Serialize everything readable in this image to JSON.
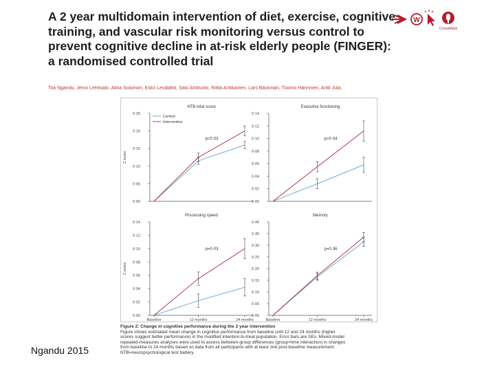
{
  "paper": {
    "title_lines": [
      "A 2 year multidomain intervention of diet, exercise, cognitive",
      "training, and vascular risk monitoring versus control to",
      "prevent cognitive decline in at-risk elderly people (FINGER):",
      "a randomised controlled trial"
    ],
    "authors": "Tiia Ngandu, Jenni Lehtisalo, Alina Solomon, Esko Levälahti, Satu Ahtiluoto, Riitta Antikainen, Lars Bäckman, Tuomo Hänninen, Antti Jula,",
    "logos": {
      "color": "#b01e2e",
      "badge_text": "CrossMark"
    },
    "citation": "Ngandu 2015"
  },
  "figure": {
    "caption_title": "Figure 2: Change in cognitive performance during the 2 year intervention",
    "caption_lines": [
      "Figure shows estimated mean change in cognitive performance from baseline until 12 and 24 months (higher",
      "scores suggest better performance) in the modified intention-to-treat population. Error bars are SEs. Mixed-model",
      "repeated-measures analyses were used to assess between-group differences (group×time interaction) in changes",
      "from baseline to 24 months based on data from all participants with at least one post-baseline measurement.",
      "NTB=neuropsychological test battery."
    ],
    "legend": {
      "control": "Control",
      "intervention": "Intervention"
    },
    "colors": {
      "control": "#5aa0d0",
      "intervention": "#a8283a",
      "axis": "#555555"
    }
  },
  "chart_data": [
    {
      "type": "line",
      "title": "NTB total score",
      "ylabel": "Z score",
      "xlabel": "",
      "categories": [
        "Baseline",
        "12 months",
        "24 months"
      ],
      "x_ticks_shown": false,
      "ylim": [
        0,
        0.25
      ],
      "yticks": [
        "0·25",
        "0·20",
        "0·15",
        "0·10",
        "0·05",
        "0·00"
      ],
      "yvals": [
        0.25,
        0.2,
        0.15,
        0.1,
        0.05,
        0.0
      ],
      "p_label": "p=0·03",
      "legend": "top-left",
      "series": [
        {
          "name": "Control",
          "values": [
            0,
            0.115,
            0.16
          ],
          "err": [
            0,
            0.01,
            0.01
          ]
        },
        {
          "name": "Intervention",
          "values": [
            0,
            0.125,
            0.2
          ],
          "err": [
            0,
            0.012,
            0.014
          ]
        }
      ]
    },
    {
      "type": "line",
      "title": "Executive functioning",
      "ylabel": "",
      "xlabel": "",
      "categories": [
        "Baseline",
        "12 months",
        "24 months"
      ],
      "x_ticks_shown": false,
      "ylim": [
        0,
        0.14
      ],
      "yticks": [
        "0·14",
        "0·12",
        "0·10",
        "0·08",
        "0·06",
        "0·04",
        "0·02",
        "0·00"
      ],
      "yvals": [
        0.14,
        0.12,
        0.1,
        0.08,
        0.06,
        0.04,
        0.02,
        0.0
      ],
      "p_label": "p=0·04",
      "series": [
        {
          "name": "Control",
          "values": [
            0,
            0.028,
            0.058
          ],
          "err": [
            0,
            0.008,
            0.012
          ]
        },
        {
          "name": "Intervention",
          "values": [
            0,
            0.055,
            0.112
          ],
          "err": [
            0,
            0.008,
            0.016
          ]
        }
      ]
    },
    {
      "type": "line",
      "title": "Processing speed",
      "ylabel": "Z score",
      "xlabel": "",
      "categories": [
        "Baseline",
        "12 months",
        "24 months"
      ],
      "x_ticks_shown": true,
      "ylim": [
        0,
        0.14
      ],
      "yticks": [
        "0·14",
        "0·12",
        "0·10",
        "0·08",
        "0·06",
        "0·04",
        "0·02",
        "0·00"
      ],
      "yvals": [
        0.14,
        0.12,
        0.1,
        0.08,
        0.06,
        0.04,
        0.02,
        0.0
      ],
      "p_label": "p=0·03",
      "series": [
        {
          "name": "Control",
          "values": [
            0,
            0.022,
            0.042
          ],
          "err": [
            0,
            0.01,
            0.013
          ]
        },
        {
          "name": "Intervention",
          "values": [
            0,
            0.055,
            0.1
          ],
          "err": [
            0,
            0.01,
            0.015
          ]
        }
      ]
    },
    {
      "type": "line",
      "title": "Memory",
      "ylabel": "",
      "xlabel": "",
      "categories": [
        "Baseline",
        "12 months",
        "24 months"
      ],
      "x_ticks_shown": true,
      "ylim": [
        0,
        0.4
      ],
      "yticks": [
        "0·40",
        "0·35",
        "0·30",
        "0·25",
        "0·20",
        "0·15",
        "0·10",
        "0·05",
        "0·00"
      ],
      "yvals": [
        0.4,
        0.35,
        0.3,
        0.25,
        0.2,
        0.15,
        0.1,
        0.05,
        0.0
      ],
      "p_label": "p=0·36",
      "series": [
        {
          "name": "Control",
          "values": [
            0,
            0.165,
            0.315
          ],
          "err": [
            0,
            0.015,
            0.02
          ]
        },
        {
          "name": "Intervention",
          "values": [
            0,
            0.17,
            0.335
          ],
          "err": [
            0,
            0.015,
            0.02
          ]
        }
      ]
    }
  ]
}
